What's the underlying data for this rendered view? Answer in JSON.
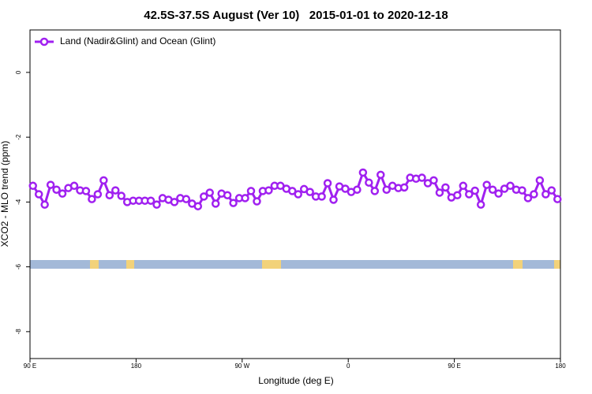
{
  "chart_data": {
    "type": "line",
    "title": "42.5S-37.5S August (Ver 10)   2015-01-01 to 2020-12-18",
    "x_label": "Longitude (deg E)",
    "y_label": "XCO2 - MLO trend (ppm)",
    "xlim": [
      90,
      540
    ],
    "xticks": [
      {
        "value": 90,
        "label": "90 E"
      },
      180,
      {
        "value": 270,
        "label": "90 W"
      },
      {
        "value": 360,
        "label": "0"
      },
      {
        "value": 450,
        "label": "90 E"
      },
      {
        "value": 540,
        "label": "180"
      }
    ],
    "ylim": [
      -8.83,
      1.31
    ],
    "yticks": [
      0,
      -2,
      -4,
      -6,
      -8
    ],
    "legend": "top-left",
    "x": [
      92.5,
      97.5,
      102.5,
      107.5,
      112.5,
      117.5,
      122.5,
      127.5,
      132.5,
      137.5,
      142.5,
      147.5,
      152.5,
      157.5,
      162.5,
      167.5,
      172.5,
      177.5,
      182.5,
      187.5,
      192.5,
      197.5,
      202.5,
      207.5,
      212.5,
      217.5,
      222.5,
      227.5,
      232.5,
      237.5,
      242.5,
      247.5,
      252.5,
      257.5,
      262.5,
      267.5,
      272.5,
      277.5,
      282.5,
      287.5,
      292.5,
      297.5,
      302.5,
      307.5,
      312.5,
      317.5,
      322.5,
      327.5,
      332.5,
      337.5,
      342.5,
      347.5,
      352.5,
      357.5,
      362.5,
      367.5,
      372.5,
      377.5,
      382.5,
      387.5,
      392.5,
      397.5,
      402.5,
      407.5,
      412.5,
      417.5,
      422.5,
      427.5,
      432.5,
      437.5,
      442.5,
      447.5,
      452.5,
      457.5,
      462.5,
      467.5,
      472.5,
      477.5,
      482.5,
      487.5,
      492.5,
      497.5,
      502.5,
      507.5,
      512.5,
      517.5,
      522.5,
      527.5,
      532.5,
      537.5
    ],
    "series": [
      {
        "name": "Land (Nadir&Glint) and Ocean (Glint)",
        "color": "#a020f0",
        "values": [
          -3.5,
          -3.76,
          -4.08,
          -3.47,
          -3.62,
          -3.74,
          -3.57,
          -3.5,
          -3.64,
          -3.66,
          -3.91,
          -3.76,
          -3.33,
          -3.79,
          -3.64,
          -3.81,
          -4.0,
          -3.96,
          -3.96,
          -3.96,
          -3.96,
          -4.08,
          -3.88,
          -3.93,
          -4.0,
          -3.88,
          -3.91,
          -4.05,
          -4.13,
          -3.83,
          -3.71,
          -4.05,
          -3.74,
          -3.79,
          -4.03,
          -3.88,
          -3.88,
          -3.66,
          -3.98,
          -3.66,
          -3.64,
          -3.5,
          -3.5,
          -3.59,
          -3.66,
          -3.76,
          -3.6,
          -3.69,
          -3.83,
          -3.83,
          -3.42,
          -3.93,
          -3.52,
          -3.59,
          -3.69,
          -3.62,
          -3.09,
          -3.4,
          -3.66,
          -3.16,
          -3.62,
          -3.5,
          -3.57,
          -3.55,
          -3.25,
          -3.28,
          -3.25,
          -3.42,
          -3.33,
          -3.71,
          -3.55,
          -3.86,
          -3.79,
          -3.5,
          -3.76,
          -3.65,
          -4.08,
          -3.47,
          -3.62,
          -3.74,
          -3.59,
          -3.5,
          -3.62,
          -3.64,
          -3.88,
          -3.76,
          -3.33,
          -3.76,
          -3.64,
          -3.91
        ]
      }
    ]
  }
}
